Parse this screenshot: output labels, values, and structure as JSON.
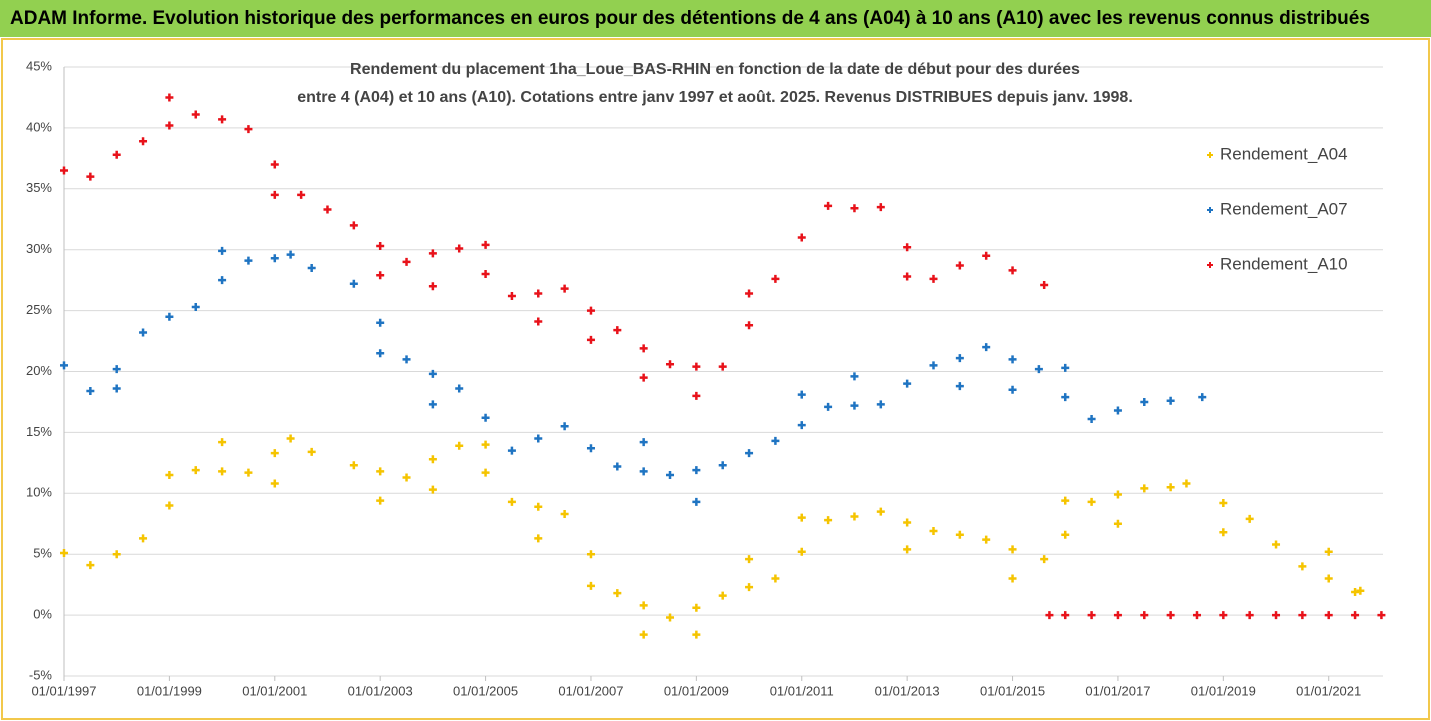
{
  "chart_data": {
    "type": "scatter",
    "title": "ADAM Informe. Evolution historique des performances en euros pour des détentions de 4 ans (A04) à 10 ans (A10) avec les revenus connus distribués",
    "subtitle": [
      "Rendement du placement 1ha_Loue_BAS-RHIN en fonction de la date de début pour des durées",
      "entre 4 (A04) et 10 ans (A10). Cotations entre janv 1997 et août. 2025. Revenus DISTRIBUES depuis janv. 1998."
    ],
    "xlim": [
      1997,
      2022.03
    ],
    "ylim": [
      -5,
      45
    ],
    "xticks": [
      {
        "value": 1997,
        "label": "01/01/1997"
      },
      {
        "value": 1999,
        "label": "01/01/1999"
      },
      {
        "value": 2001,
        "label": "01/01/2001"
      },
      {
        "value": 2003,
        "label": "01/01/2003"
      },
      {
        "value": 2005,
        "label": "01/01/2005"
      },
      {
        "value": 2007,
        "label": "01/01/2007"
      },
      {
        "value": 2009,
        "label": "01/01/2009"
      },
      {
        "value": 2011,
        "label": "01/01/2011"
      },
      {
        "value": 2013,
        "label": "01/01/2013"
      },
      {
        "value": 2015,
        "label": "01/01/2015"
      },
      {
        "value": 2017,
        "label": "01/01/2017"
      },
      {
        "value": 2019,
        "label": "01/01/2019"
      },
      {
        "value": 2021,
        "label": "01/01/2021"
      }
    ],
    "yticks": [
      {
        "value": -5,
        "label": "-5%"
      },
      {
        "value": 0,
        "label": "0%"
      },
      {
        "value": 5,
        "label": "5%"
      },
      {
        "value": 10,
        "label": "10%"
      },
      {
        "value": 15,
        "label": "15%"
      },
      {
        "value": 20,
        "label": "20%"
      },
      {
        "value": 25,
        "label": "25%"
      },
      {
        "value": 30,
        "label": "30%"
      },
      {
        "value": 35,
        "label": "35%"
      },
      {
        "value": 40,
        "label": "40%"
      },
      {
        "value": 45,
        "label": "45%"
      }
    ],
    "grid": true,
    "legend": "right",
    "series": [
      {
        "name": "Rendement_A04",
        "color": "#f5c400",
        "x": [
          1997,
          1997.5,
          1998,
          1998.5,
          1999,
          1999,
          1999.5,
          2000,
          2000,
          2000.5,
          2001,
          2001,
          2001.3,
          2001.7,
          2002.5,
          2003,
          2003,
          2003.5,
          2004,
          2004,
          2004.5,
          2005,
          2005,
          2005.5,
          2006,
          2006,
          2006.5,
          2007,
          2007,
          2007.5,
          2008,
          2008,
          2008.5,
          2009,
          2009,
          2009.5,
          2010,
          2010,
          2010.5,
          2011,
          2011,
          2011.5,
          2012,
          2012.5,
          2013,
          2013,
          2013.5,
          2014,
          2014.5,
          2015,
          2015,
          2015.6,
          2016,
          2016,
          2016.5,
          2017,
          2017,
          2017.5,
          2018,
          2018.3,
          2019,
          2019,
          2019.5,
          2020,
          2020.5,
          2021,
          2021,
          2021.5,
          2021.6
        ],
        "values": [
          5.1,
          4.1,
          5.0,
          6.3,
          9.0,
          11.5,
          11.9,
          11.8,
          14.2,
          11.7,
          13.3,
          10.8,
          14.5,
          13.4,
          12.3,
          11.8,
          9.4,
          11.3,
          12.8,
          10.3,
          13.9,
          11.7,
          14.0,
          9.3,
          8.9,
          6.3,
          8.3,
          5.0,
          2.4,
          1.8,
          0.8,
          -1.6,
          -0.2,
          0.6,
          -1.6,
          1.6,
          2.3,
          4.6,
          3.0,
          5.2,
          8.0,
          7.8,
          8.1,
          8.5,
          7.6,
          5.4,
          6.9,
          6.6,
          6.2,
          5.4,
          3.0,
          4.6,
          6.6,
          9.4,
          9.3,
          9.9,
          7.5,
          10.4,
          10.5,
          10.8,
          9.2,
          6.8,
          7.9,
          5.8,
          4.0,
          3.0,
          5.2,
          1.9,
          2.0
        ]
      },
      {
        "name": "Rendement_A07",
        "color": "#1f74c2",
        "x": [
          1997,
          1997.5,
          1998,
          1998,
          1998.5,
          1999,
          1999.5,
          2000,
          2000,
          2000.5,
          2001,
          2001.3,
          2001.7,
          2002.5,
          2003,
          2003,
          2003.5,
          2004,
          2004,
          2004.5,
          2005,
          2005.5,
          2006,
          2006.5,
          2007,
          2007.5,
          2008,
          2008,
          2008.5,
          2009,
          2009,
          2009.5,
          2010,
          2010.5,
          2011,
          2011,
          2011.5,
          2012,
          2012,
          2012.5,
          2013,
          2013.5,
          2014,
          2014,
          2014.5,
          2015,
          2015,
          2015.5,
          2016,
          2016,
          2016.5,
          2017,
          2017.5,
          2018,
          2018.6
        ],
        "values": [
          20.5,
          18.4,
          20.2,
          18.6,
          23.2,
          24.5,
          25.3,
          27.5,
          29.9,
          29.1,
          29.3,
          29.6,
          28.5,
          27.2,
          24.0,
          21.5,
          21.0,
          19.8,
          17.3,
          18.6,
          16.2,
          13.5,
          14.5,
          15.5,
          13.7,
          12.2,
          11.8,
          14.2,
          11.5,
          11.9,
          9.3,
          12.3,
          13.3,
          14.3,
          15.6,
          18.1,
          17.1,
          17.2,
          19.6,
          17.3,
          19.0,
          20.5,
          21.1,
          18.8,
          22.0,
          21.0,
          18.5,
          20.2,
          17.9,
          20.3,
          16.1,
          16.8,
          17.5,
          17.6,
          17.9
        ]
      },
      {
        "name": "Rendement_A10",
        "color": "#e8121a",
        "x": [
          1997,
          1997.5,
          1998,
          1998.5,
          1999,
          1999,
          1999.5,
          2000,
          2000.5,
          2001,
          2001,
          2001.5,
          2002,
          2002.5,
          2003,
          2003,
          2003.5,
          2004,
          2004,
          2004.5,
          2005,
          2005,
          2005.5,
          2006,
          2006,
          2006.5,
          2007,
          2007,
          2007.5,
          2008,
          2008,
          2008.5,
          2009,
          2009,
          2009.5,
          2010,
          2010,
          2010.5,
          2011,
          2011.5,
          2012,
          2012.5,
          2013,
          2013,
          2013.5,
          2014,
          2014.5,
          2015,
          2015.6,
          2015.7,
          2016,
          2016.5,
          2017,
          2017.5,
          2018,
          2018.5,
          2019,
          2019.5,
          2020,
          2020.5,
          2021,
          2021.5,
          2022
        ],
        "values": [
          36.5,
          36.0,
          37.8,
          38.9,
          40.2,
          42.5,
          41.1,
          40.7,
          39.9,
          37.0,
          34.5,
          34.5,
          33.3,
          32.0,
          30.3,
          27.9,
          29.0,
          29.7,
          27.0,
          30.1,
          28.0,
          30.4,
          26.2,
          26.4,
          24.1,
          26.8,
          25.0,
          22.6,
          23.4,
          21.9,
          19.5,
          20.6,
          20.4,
          18.0,
          20.4,
          23.8,
          26.4,
          27.6,
          31.0,
          33.6,
          33.4,
          33.5,
          30.2,
          27.8,
          27.6,
          28.7,
          29.5,
          28.3,
          27.1,
          0,
          0,
          0,
          0,
          0,
          0,
          0,
          0,
          0,
          0,
          0,
          0,
          0,
          0
        ]
      }
    ]
  }
}
